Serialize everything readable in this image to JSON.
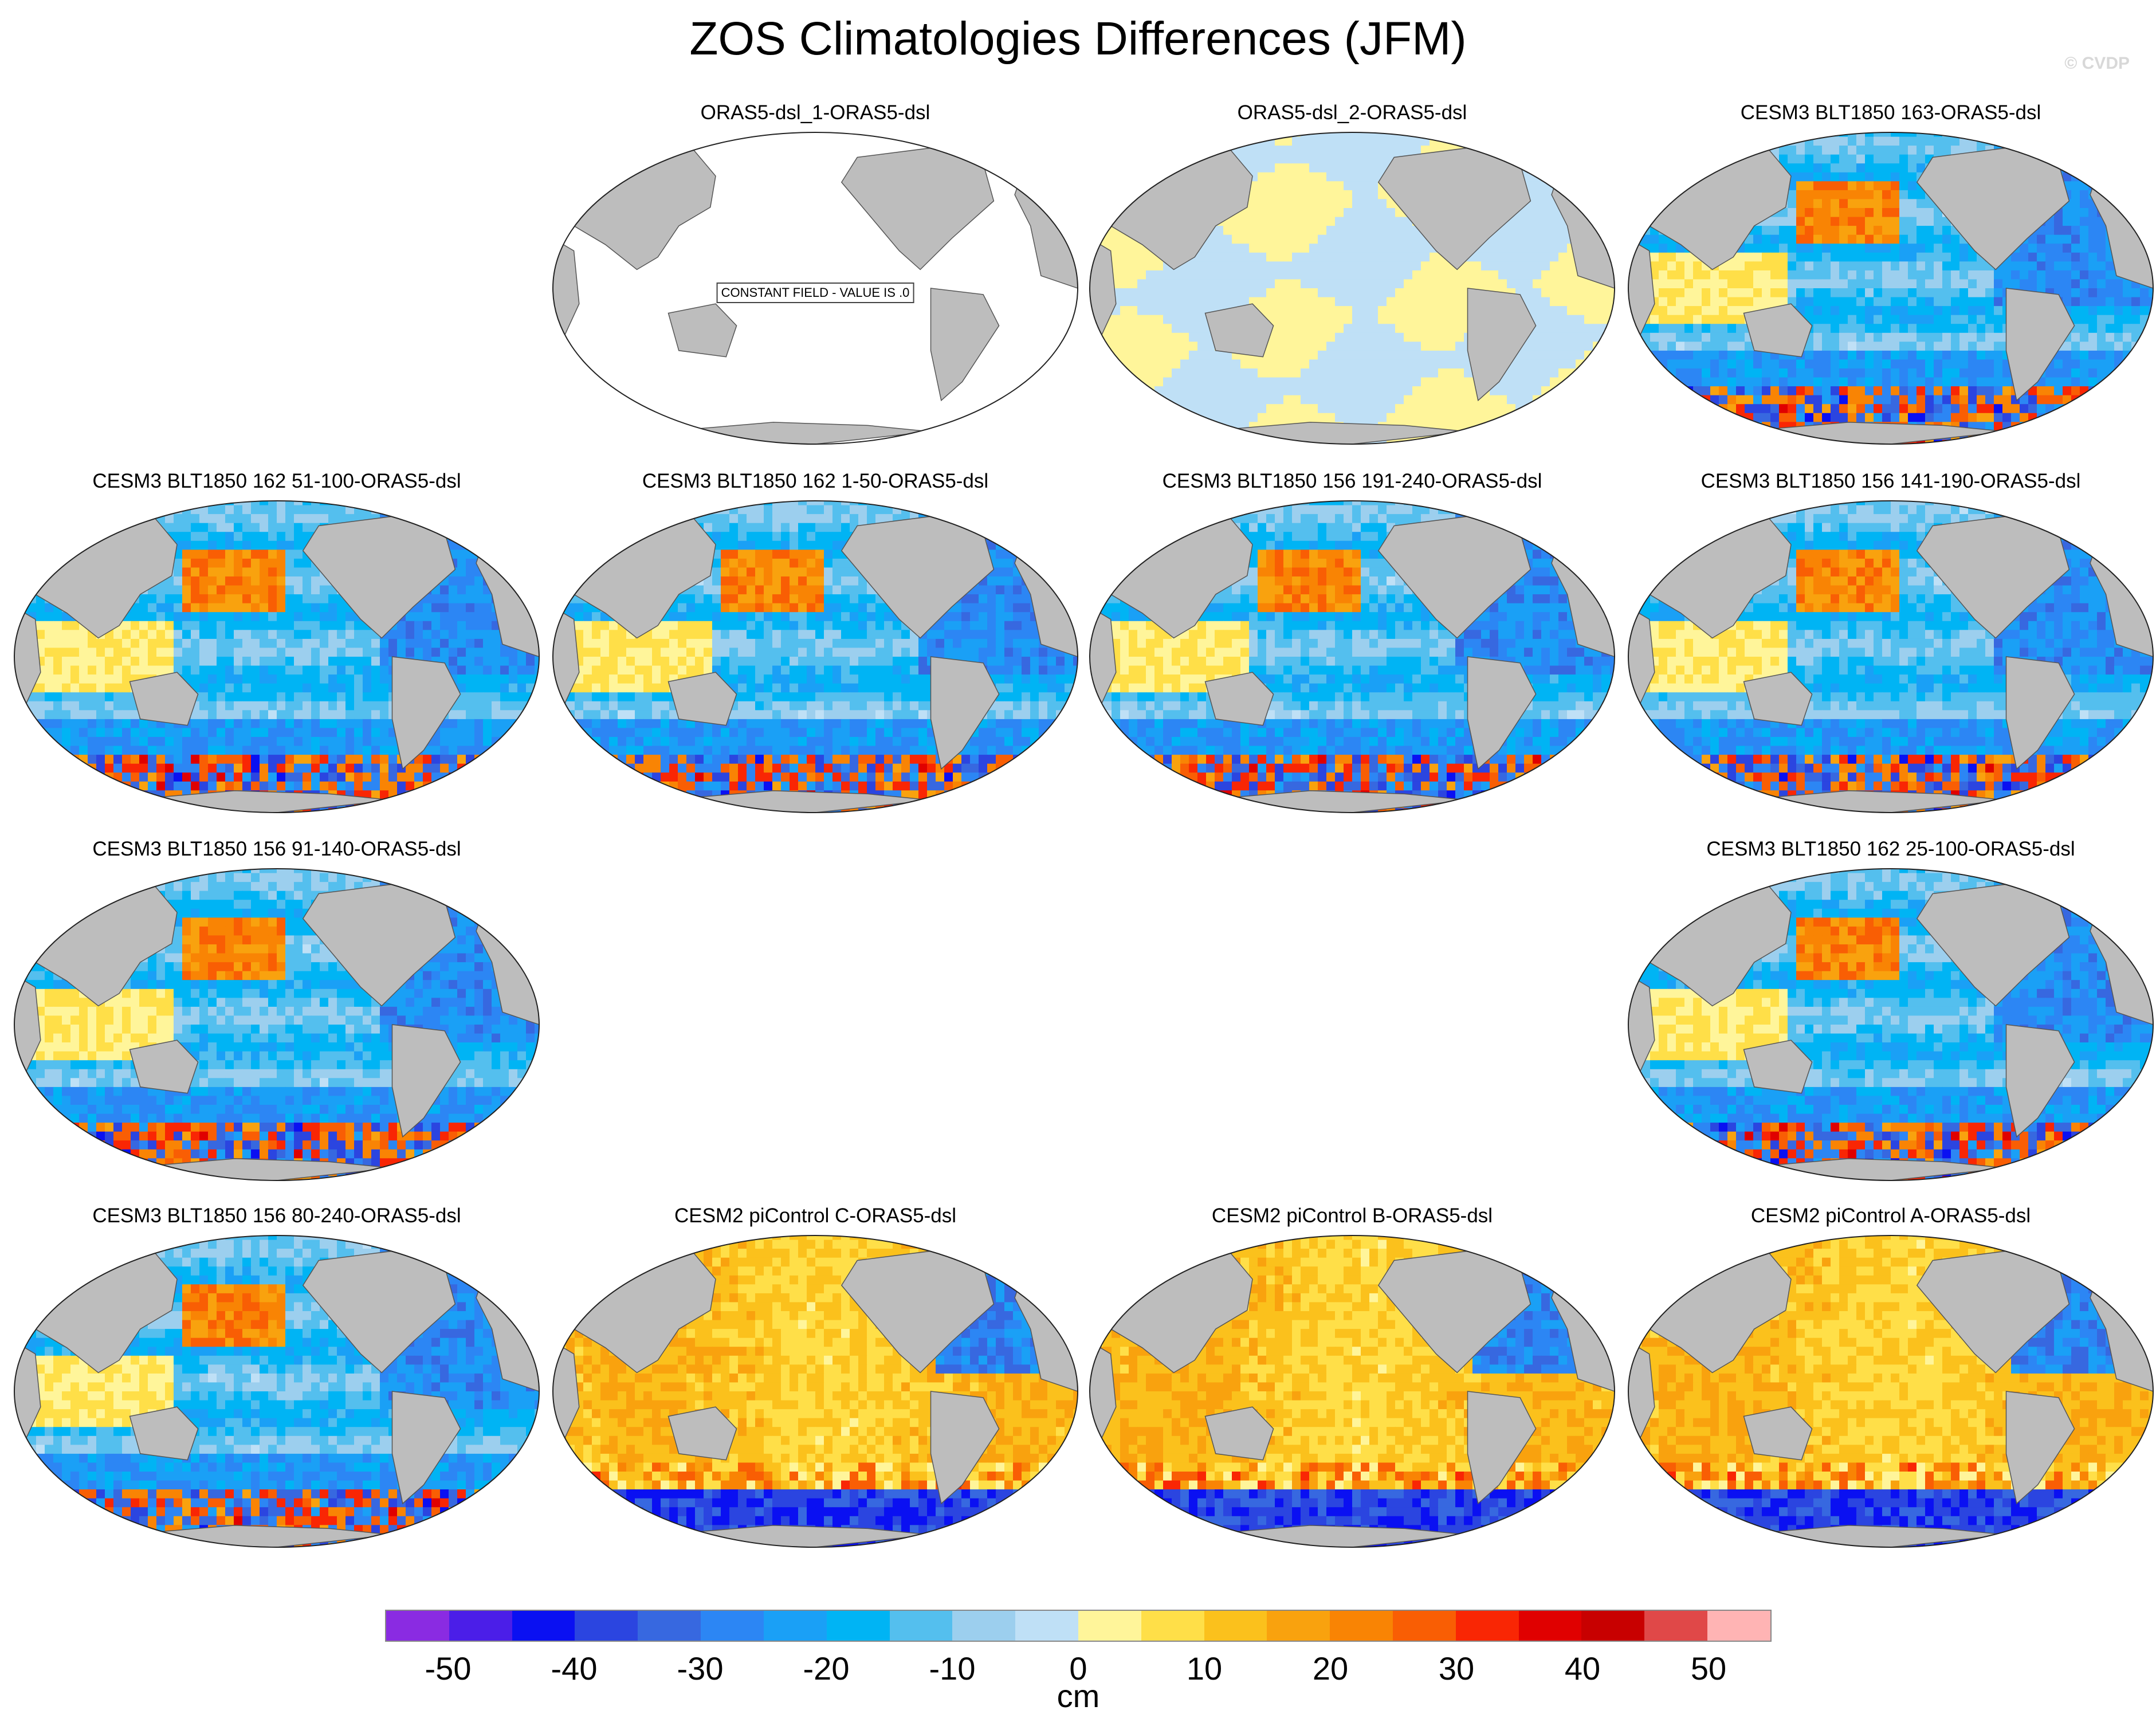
{
  "title": "ZOS Climatologies Differences (JFM)",
  "watermark": "© CVDP",
  "constant_label": "CONSTANT FIELD - VALUE IS .0",
  "colors": {
    "ocean_background": "#ffffff",
    "land": "#bdbdbd",
    "coast": "#555555"
  },
  "panels": [
    {
      "title": "ORAS5-dsl_1-ORAS5-dsl",
      "style": "constant"
    },
    {
      "title": "ORAS5-dsl_2-ORAS5-dsl",
      "style": "near_zero"
    },
    {
      "title": "CESM3 BLT1850 163-ORAS5-dsl",
      "style": "cesm3"
    },
    {
      "title": "CESM3 BLT1850 162 51-100-ORAS5-dsl",
      "style": "cesm3"
    },
    {
      "title": "CESM3 BLT1850 162 1-50-ORAS5-dsl",
      "style": "cesm3"
    },
    {
      "title": "CESM3 BLT1850 156 191-240-ORAS5-dsl",
      "style": "cesm3"
    },
    {
      "title": "CESM3 BLT1850 156 141-190-ORAS5-dsl",
      "style": "cesm3"
    },
    {
      "title": "CESM3 BLT1850 156 91-140-ORAS5-dsl",
      "style": "cesm3"
    },
    {
      "title": "CESM3 BLT1850 162 25-100-ORAS5-dsl",
      "style": "cesm3"
    },
    {
      "title": "CESM3 BLT1850 156 80-240-ORAS5-dsl",
      "style": "cesm3"
    },
    {
      "title": "CESM2 piControl C-ORAS5-dsl",
      "style": "cesm2"
    },
    {
      "title": "CESM2 piControl B-ORAS5-dsl",
      "style": "cesm2"
    },
    {
      "title": "CESM2 piControl A-ORAS5-dsl",
      "style": "cesm2"
    }
  ],
  "colorbar": {
    "units": "cm",
    "ticks": [
      "-50",
      "-40",
      "-30",
      "-20",
      "-10",
      "0",
      "10",
      "20",
      "30",
      "40",
      "50"
    ],
    "colors": [
      "#8a2be2",
      "#4b1ee8",
      "#0a10f2",
      "#2b45e0",
      "#3768e0",
      "#2c86f4",
      "#1aa0f6",
      "#00b4f4",
      "#54bfee",
      "#9ccfee",
      "#bfe0f6",
      "#fff59a",
      "#ffdf48",
      "#fbc11c",
      "#f9a20e",
      "#f98404",
      "#f95e04",
      "#f92604",
      "#e00000",
      "#c80000",
      "#e04848",
      "#ffb4b4"
    ]
  }
}
